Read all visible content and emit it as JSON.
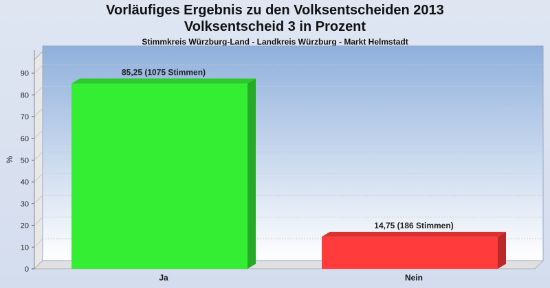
{
  "header": {
    "title": "Vorläufiges Ergebnis zu den Volksentscheiden 2013",
    "subtitle": "Volksentscheid 3 in Prozent",
    "caption": "Stimmkreis Würzburg-Land - Landkreis Würzburg - Markt Helmstadt"
  },
  "chart_data": {
    "type": "bar",
    "categories": [
      "Ja",
      "Nein"
    ],
    "values": [
      85.25,
      14.75
    ],
    "data_labels": [
      "85,25 (1075 Stimmen)",
      "14,75 (186 Stimmen)"
    ],
    "colors": [
      "#33ee33",
      "#ff3b3b"
    ],
    "ylabel": "%",
    "ylim": [
      0,
      100
    ],
    "yticks": [
      "0",
      "10",
      "20",
      "30",
      "40",
      "50",
      "60",
      "70",
      "80",
      "90"
    ],
    "grid": true
  }
}
